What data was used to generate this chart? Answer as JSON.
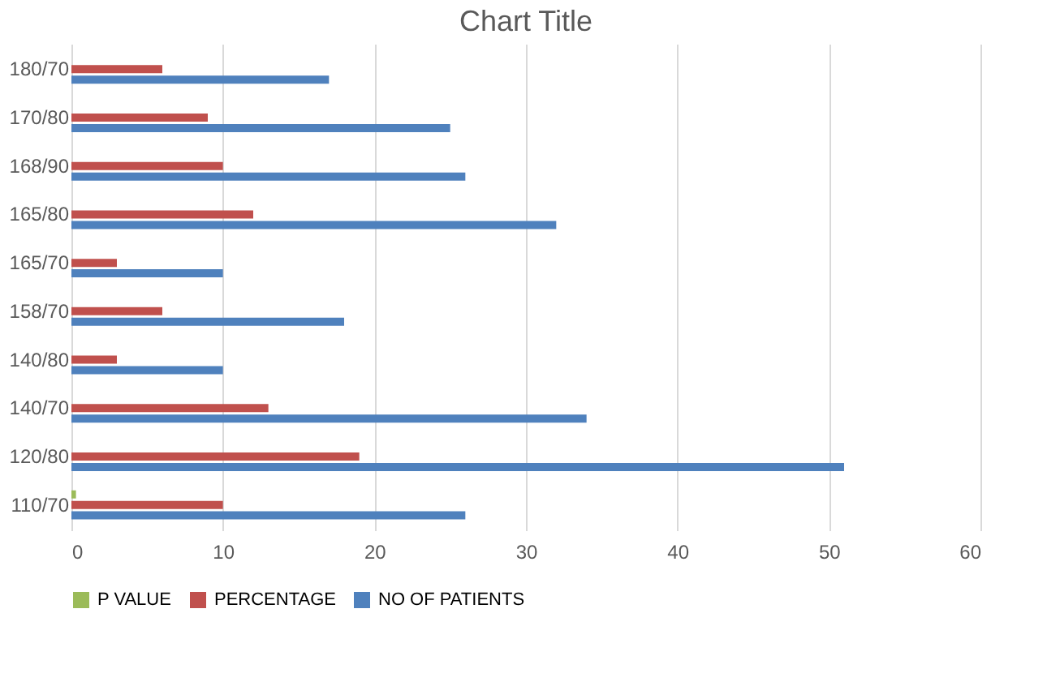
{
  "chart_data": {
    "type": "bar",
    "orientation": "horizontal",
    "title": "Chart Title",
    "categories": [
      "180/70",
      "170/80",
      "168/90",
      "165/80",
      "165/70",
      "158/70",
      "140/80",
      "140/70",
      "120/80",
      "110/70"
    ],
    "series": [
      {
        "name": "P VALUE",
        "color": "#9bbb59",
        "values": [
          null,
          null,
          null,
          null,
          null,
          null,
          null,
          null,
          null,
          0.3
        ]
      },
      {
        "name": "PERCENTAGE",
        "color": "#c0504d",
        "values": [
          6,
          9,
          10,
          12,
          3,
          6,
          3,
          13,
          19,
          10
        ]
      },
      {
        "name": "NO OF PATIENTS",
        "color": "#4f81bd",
        "values": [
          17,
          25,
          26,
          32,
          10,
          18,
          10,
          34,
          51,
          26
        ]
      }
    ],
    "xlim": [
      0,
      60
    ],
    "xticks": [
      0,
      10,
      20,
      30,
      40,
      50,
      60
    ],
    "grid": "x",
    "legend": "bottom"
  }
}
